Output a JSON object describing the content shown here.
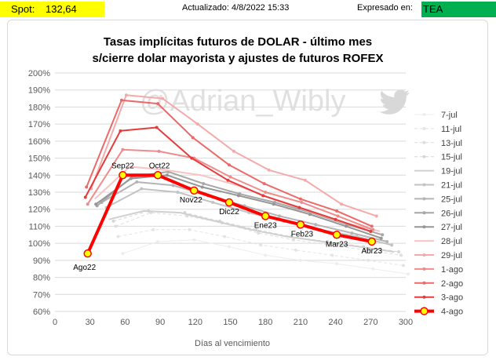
{
  "header": {
    "spot_label": "Spot:",
    "spot_value": "132,64",
    "updated": "Actualizado:  4/8/2022 15:33",
    "expressed_label": "Expresado en:",
    "expressed_value": "TEA"
  },
  "watermark": "@Adrian_Wibly",
  "chart_data": {
    "type": "line",
    "title_line1": "Tasas implícitas futuros de DOLAR - último mes",
    "title_line2": "s/cierre dolar mayorista y ajustes de futuros ROFEX",
    "xlabel": "Días al vencimiento",
    "xlim": [
      0,
      300
    ],
    "ylim": [
      60,
      200
    ],
    "xticks": [
      0,
      30,
      60,
      90,
      120,
      150,
      180,
      210,
      240,
      270,
      300
    ],
    "yticks": [
      60,
      70,
      80,
      90,
      100,
      110,
      120,
      130,
      140,
      150,
      160,
      170,
      180,
      190,
      200
    ],
    "y_suffix": "%",
    "legend_position": "right",
    "series": [
      {
        "name": "7-jul",
        "color": "#ededed",
        "width": 1,
        "dash": false,
        "marker": true,
        "points": [
          [
            58,
            94
          ],
          [
            88,
            101
          ],
          [
            119,
            102
          ],
          [
            149,
            98
          ],
          [
            180,
            93
          ],
          [
            210,
            90
          ],
          [
            241,
            88
          ],
          [
            272,
            85
          ],
          [
            302,
            82
          ]
        ]
      },
      {
        "name": "11-jul",
        "color": "#e4e4e4",
        "width": 1,
        "dash": true,
        "marker": true,
        "points": [
          [
            54,
            104
          ],
          [
            84,
            108
          ],
          [
            115,
            108
          ],
          [
            145,
            104
          ],
          [
            176,
            99
          ],
          [
            206,
            96
          ],
          [
            237,
            93
          ],
          [
            268,
            90
          ],
          [
            298,
            87
          ]
        ]
      },
      {
        "name": "13-jul",
        "color": "#dedede",
        "width": 1,
        "dash": true,
        "marker": true,
        "points": [
          [
            52,
            110
          ],
          [
            82,
            118
          ],
          [
            113,
            116
          ],
          [
            143,
            112
          ],
          [
            174,
            106
          ],
          [
            204,
            102
          ],
          [
            235,
            99
          ],
          [
            266,
            96
          ],
          [
            296,
            93
          ]
        ]
      },
      {
        "name": "15-jul",
        "color": "#d6d6d6",
        "width": 1,
        "dash": true,
        "marker": true,
        "points": [
          [
            50,
            113
          ],
          [
            80,
            119
          ],
          [
            111,
            118
          ],
          [
            141,
            113
          ],
          [
            172,
            108
          ],
          [
            202,
            104
          ],
          [
            233,
            101
          ],
          [
            264,
            98
          ],
          [
            294,
            95
          ]
        ]
      },
      {
        "name": "19-jul",
        "color": "#d0d0d0",
        "width": 2,
        "dash": false,
        "marker": false,
        "points": [
          [
            46,
            114
          ],
          [
            76,
            119
          ],
          [
            107,
            118
          ],
          [
            137,
            113
          ],
          [
            168,
            108
          ],
          [
            198,
            104
          ],
          [
            229,
            101
          ],
          [
            260,
            98
          ],
          [
            290,
            95
          ]
        ]
      },
      {
        "name": "21-jul",
        "color": "#c3c3c3",
        "width": 2,
        "dash": false,
        "marker": true,
        "points": [
          [
            44,
            121
          ],
          [
            74,
            132
          ],
          [
            105,
            130
          ],
          [
            135,
            124
          ],
          [
            166,
            118
          ],
          [
            196,
            113
          ],
          [
            227,
            108
          ],
          [
            258,
            104
          ],
          [
            288,
            99
          ]
        ]
      },
      {
        "name": "25-jul",
        "color": "#b4b4b4",
        "width": 2,
        "dash": false,
        "marker": true,
        "points": [
          [
            40,
            124
          ],
          [
            70,
            136
          ],
          [
            101,
            134
          ],
          [
            131,
            128
          ],
          [
            162,
            122
          ],
          [
            192,
            116
          ],
          [
            223,
            111
          ],
          [
            254,
            106
          ],
          [
            284,
            101
          ]
        ]
      },
      {
        "name": "26-jul",
        "color": "#a6a6a6",
        "width": 2,
        "dash": false,
        "marker": true,
        "points": [
          [
            36,
            122
          ],
          [
            66,
            139
          ],
          [
            97,
            142
          ],
          [
            127,
            135
          ],
          [
            158,
            129
          ],
          [
            188,
            124
          ],
          [
            219,
            118
          ],
          [
            250,
            111
          ],
          [
            280,
            105
          ]
        ]
      },
      {
        "name": "27-jul",
        "color": "#969696",
        "width": 2,
        "dash": false,
        "marker": true,
        "points": [
          [
            35,
            123
          ],
          [
            65,
            138
          ],
          [
            96,
            140
          ],
          [
            126,
            133
          ],
          [
            157,
            128
          ],
          [
            187,
            123
          ],
          [
            218,
            117
          ],
          [
            249,
            110
          ],
          [
            279,
            103
          ]
        ]
      },
      {
        "name": "28-jul",
        "color": "#f7c3c3",
        "width": 2,
        "dash": false,
        "marker": false,
        "points": [
          [
            34,
            126
          ],
          [
            64,
            145
          ],
          [
            95,
            143
          ],
          [
            125,
            140
          ],
          [
            156,
            134
          ],
          [
            186,
            126
          ],
          [
            217,
            119
          ],
          [
            248,
            112
          ],
          [
            278,
            107
          ]
        ]
      },
      {
        "name": "29-jul",
        "color": "#f4aaaa",
        "width": 2,
        "dash": false,
        "marker": true,
        "points": [
          [
            31,
            132
          ],
          [
            61,
            187
          ],
          [
            92,
            185
          ],
          [
            122,
            170
          ],
          [
            153,
            154
          ],
          [
            183,
            143
          ],
          [
            214,
            137
          ],
          [
            245,
            123
          ],
          [
            275,
            116
          ]
        ]
      },
      {
        "name": "1-ago",
        "color": "#ef8b8b",
        "width": 2,
        "dash": false,
        "marker": true,
        "points": [
          [
            28,
            123
          ],
          [
            58,
            155
          ],
          [
            89,
            154
          ],
          [
            119,
            150
          ],
          [
            150,
            139
          ],
          [
            180,
            130
          ],
          [
            211,
            124
          ],
          [
            242,
            116
          ],
          [
            272,
            108
          ]
        ]
      },
      {
        "name": "2-ago",
        "color": "#ea6a6a",
        "width": 2,
        "dash": false,
        "marker": true,
        "points": [
          [
            27,
            133
          ],
          [
            57,
            184
          ],
          [
            88,
            182
          ],
          [
            118,
            162
          ],
          [
            149,
            146
          ],
          [
            179,
            135
          ],
          [
            210,
            126
          ],
          [
            241,
            119
          ],
          [
            271,
            110
          ]
        ]
      },
      {
        "name": "3-ago",
        "color": "#e53b3b",
        "width": 2,
        "dash": false,
        "marker": true,
        "points": [
          [
            26,
            127
          ],
          [
            56,
            166
          ],
          [
            87,
            168
          ],
          [
            117,
            150
          ],
          [
            148,
            137
          ],
          [
            178,
            128
          ],
          [
            209,
            121
          ],
          [
            240,
            114
          ],
          [
            270,
            107
          ]
        ]
      },
      {
        "name": "4-ago",
        "color": "#ff0000",
        "width": 4,
        "dash": false,
        "marker": "yellow",
        "points": [
          [
            28,
            94
          ],
          [
            58,
            140
          ],
          [
            88,
            140
          ],
          [
            119,
            131
          ],
          [
            149,
            124
          ],
          [
            180,
            116
          ],
          [
            210,
            111
          ],
          [
            241,
            105
          ],
          [
            271,
            101
          ]
        ]
      }
    ],
    "point_labels": [
      "Ago22",
      "Sep22",
      "Oct22",
      "Nov22",
      "Dic22",
      "Ene23",
      "Feb23",
      "Mar23",
      "Abr23"
    ]
  }
}
